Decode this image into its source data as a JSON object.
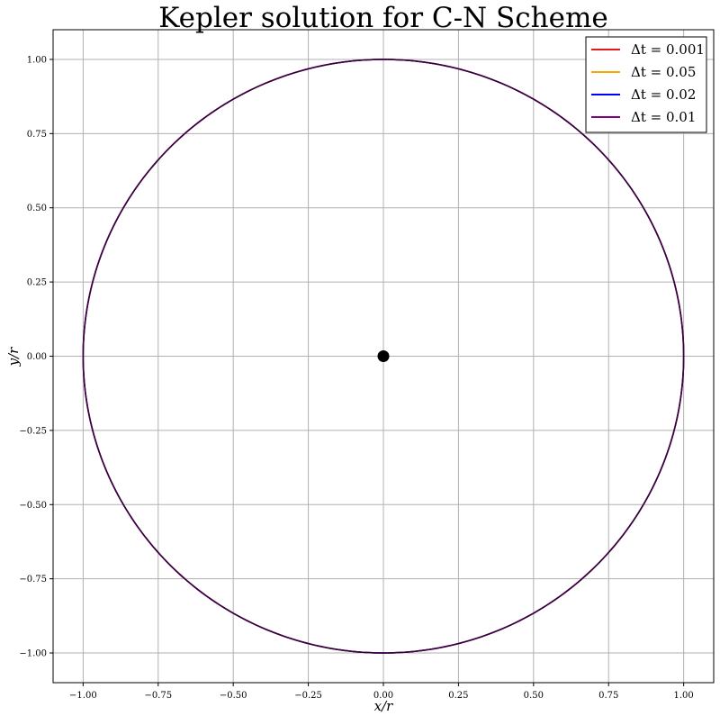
{
  "chart_data": {
    "type": "line",
    "title": "Kepler solution for C-N Scheme",
    "xlabel": "x/r",
    "ylabel": "y/r",
    "xlim": [
      -1.1,
      1.1
    ],
    "ylim": [
      -1.1,
      1.1
    ],
    "xticks": [
      -1.0,
      -0.75,
      -0.5,
      -0.25,
      0.0,
      0.25,
      0.5,
      0.75,
      1.0
    ],
    "yticks": [
      -1.0,
      -0.75,
      -0.5,
      -0.25,
      0.0,
      0.25,
      0.5,
      0.75,
      1.0
    ],
    "xtick_labels": [
      "−1.00",
      "−0.75",
      "−0.50",
      "−0.25",
      "0.00",
      "0.25",
      "0.50",
      "0.75",
      "1.00"
    ],
    "ytick_labels": [
      "−1.00",
      "−0.75",
      "−0.50",
      "−0.25",
      "0.00",
      "0.25",
      "0.50",
      "0.75",
      "1.00"
    ],
    "grid": true,
    "legend_position": "top-right",
    "series": [
      {
        "name": "Δt = 0.001",
        "color": "#e41a1c",
        "orbit": "circle",
        "center": [
          0,
          0
        ],
        "radius": 1.0
      },
      {
        "name": "Δt = 0.05",
        "color": "#ffa500",
        "orbit": "circle",
        "center": [
          0,
          0
        ],
        "radius": 1.0
      },
      {
        "name": "Δt = 0.02",
        "color": "#0000ff",
        "orbit": "circle",
        "center": [
          0,
          0
        ],
        "radius": 1.0
      },
      {
        "name": "Δt = 0.01",
        "color": "#800080",
        "orbit": "circle",
        "center": [
          0,
          0
        ],
        "radius": 1.0
      }
    ],
    "central_body": {
      "x": 0.0,
      "y": 0.0,
      "color": "#000000"
    }
  }
}
